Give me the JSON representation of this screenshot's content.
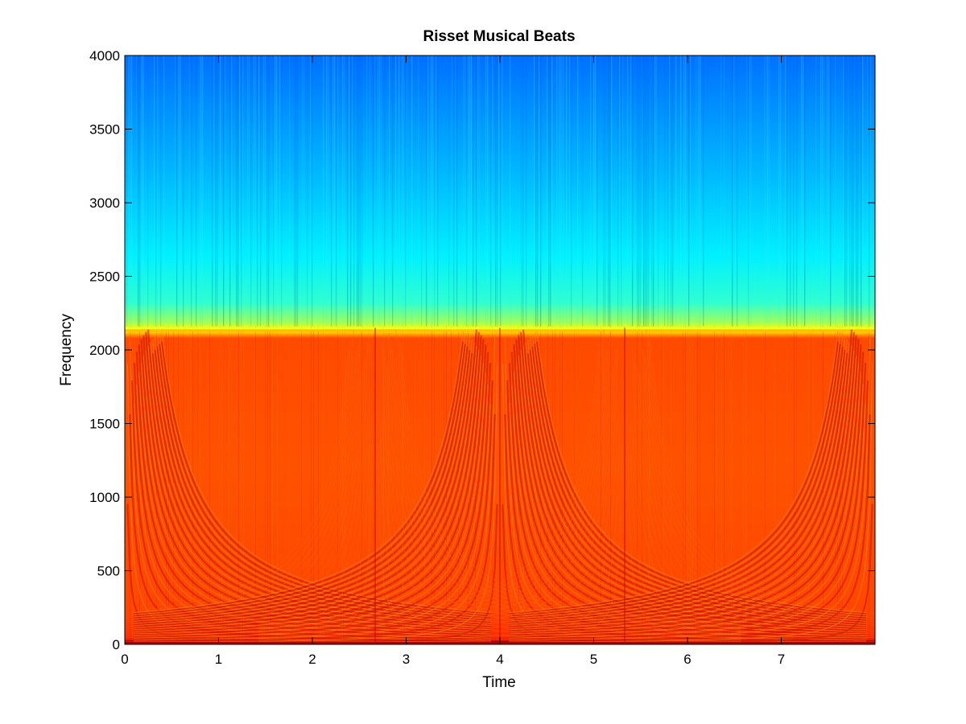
{
  "chart_data": {
    "type": "heatmap",
    "title": "Risset Musical Beats",
    "xlabel": "Time",
    "ylabel": "Frequency",
    "xlim": [
      0,
      8
    ],
    "ylim": [
      0,
      4000
    ],
    "x_ticks": [
      "0",
      "1",
      "2",
      "3",
      "4",
      "5",
      "6",
      "7"
    ],
    "y_ticks": [
      "0",
      "500",
      "1000",
      "1500",
      "2000",
      "2500",
      "3000",
      "3500",
      "4000"
    ],
    "colormap": "jet",
    "regions": [
      {
        "y_from": 0,
        "y_to": 2150,
        "level": "high",
        "color": "#ff4a00"
      },
      {
        "y_from": 2130,
        "y_to": 2160,
        "level": "transition",
        "color": "#e6ff17"
      },
      {
        "y_from": 2160,
        "y_to": 4000,
        "level": "low",
        "color": "#00b0ff"
      }
    ],
    "beat_symmetry_times": [
      0,
      2.67,
      4,
      5.33,
      8
    ],
    "grid": false,
    "legend": "none"
  }
}
